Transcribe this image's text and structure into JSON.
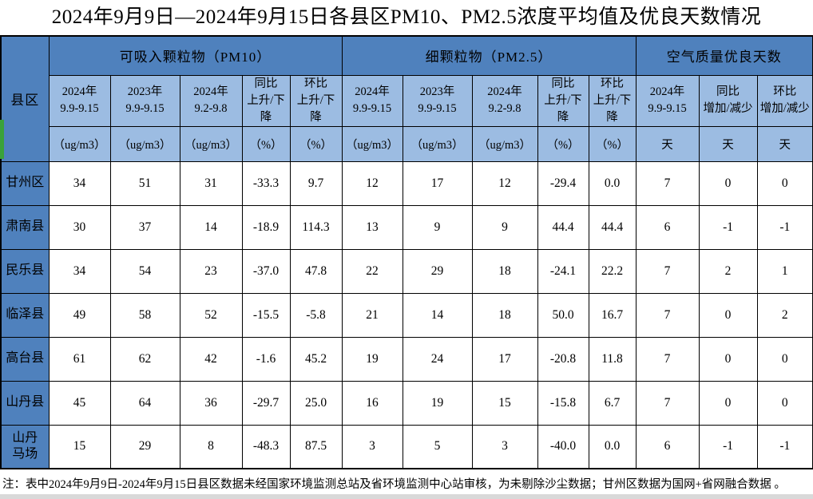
{
  "title": "2024年9月9日—2024年9月15日各县区PM10、PM2.5浓度平均值及优良天数情况",
  "note": "注：表中2024年9月9日-2024年9月15日县区数据未经国家环境监测总站及省环境监测中心站审核，为未剔除沙尘数据；甘州区数据为国网+省网融合数据 。",
  "colors": {
    "header_blue": "#4f81bd",
    "subheader_blue": "#9cbce2",
    "border_black": "#000000",
    "left_accent_green": "#3aa23a",
    "bottom_strip_gray": "#d9d9d9"
  },
  "table": {
    "corner_header": "县区",
    "groups": [
      {
        "label": "可吸入颗粒物（PM10）",
        "span": 5
      },
      {
        "label": "细颗粒物（PM2.5）",
        "span": 5
      },
      {
        "label": "空气质量优良天数",
        "span": 3
      }
    ],
    "columns": [
      {
        "label": "2024年\n9.9-9.15",
        "unit": "（ug/m3）"
      },
      {
        "label": "2023年\n9.9-9.15",
        "unit": "（ug/m3）"
      },
      {
        "label": "2024年\n9.2-9.8",
        "unit": "（ug/m3）"
      },
      {
        "label": "同比\n上升/下降",
        "unit": "（%）"
      },
      {
        "label": "环比\n上升/下降",
        "unit": "（%）"
      },
      {
        "label": "2024年\n9.9-9.15",
        "unit": "（ug/m3）"
      },
      {
        "label": "2023年\n9.9-9.15",
        "unit": "（ug/m3）"
      },
      {
        "label": "2024年\n9.2-9.8",
        "unit": "（ug/m3）"
      },
      {
        "label": "同比\n上升/下降",
        "unit": "（%）"
      },
      {
        "label": "环比\n上升/下降",
        "unit": "（%）"
      },
      {
        "label": "2024年\n9.9-9.15",
        "unit": "天"
      },
      {
        "label": "同比\n增加/减少",
        "unit": "天"
      },
      {
        "label": "环比\n增加/减少",
        "unit": "天"
      }
    ],
    "rows": [
      {
        "county": "甘州区",
        "values": [
          "34",
          "51",
          "31",
          "-33.3",
          "9.7",
          "12",
          "17",
          "12",
          "-29.4",
          "0.0",
          "7",
          "0",
          "0"
        ]
      },
      {
        "county": "肃南县",
        "values": [
          "30",
          "37",
          "14",
          "-18.9",
          "114.3",
          "13",
          "9",
          "9",
          "44.4",
          "44.4",
          "6",
          "-1",
          "-1"
        ]
      },
      {
        "county": "民乐县",
        "values": [
          "34",
          "54",
          "23",
          "-37.0",
          "47.8",
          "22",
          "29",
          "18",
          "-24.1",
          "22.2",
          "7",
          "2",
          "1"
        ]
      },
      {
        "county": "临泽县",
        "values": [
          "49",
          "58",
          "52",
          "-15.5",
          "-5.8",
          "21",
          "14",
          "18",
          "50.0",
          "16.7",
          "7",
          "0",
          "2"
        ]
      },
      {
        "county": "高台县",
        "values": [
          "61",
          "62",
          "42",
          "-1.6",
          "45.2",
          "19",
          "24",
          "17",
          "-20.8",
          "11.8",
          "7",
          "0",
          "0"
        ]
      },
      {
        "county": "山丹县",
        "values": [
          "45",
          "64",
          "36",
          "-29.7",
          "25.0",
          "16",
          "19",
          "15",
          "-15.8",
          "6.7",
          "7",
          "0",
          "0"
        ]
      },
      {
        "county": "山丹\n马场",
        "values": [
          "15",
          "29",
          "8",
          "-48.3",
          "87.5",
          "3",
          "5",
          "3",
          "-40.0",
          "0.0",
          "6",
          "-1",
          "-1"
        ]
      }
    ]
  }
}
